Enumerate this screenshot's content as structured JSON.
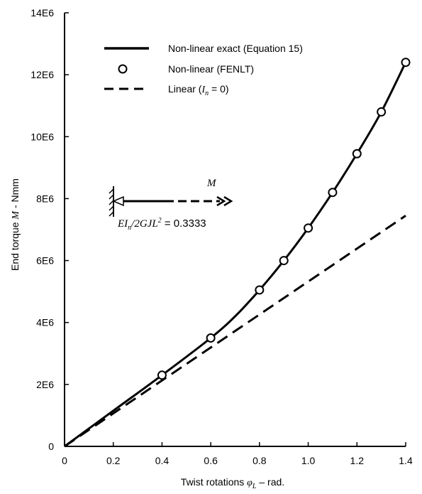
{
  "chart_data": {
    "type": "line",
    "title": "",
    "xlabel": "Twist rotations φL – rad.",
    "xlabel_parts": {
      "pre": "Twist rotations ",
      "sym": "φ",
      "sub": "L",
      "post": " – rad."
    },
    "ylabel": "End torque M - Nmm",
    "ylabel_parts": {
      "pre": "End torque ",
      "sym": "M",
      "post": " - Nmm"
    },
    "xlim": [
      0,
      1.4
    ],
    "ylim": [
      0,
      14000000
    ],
    "xticks": [
      0,
      0.2,
      0.4,
      0.6,
      0.8,
      1.0,
      1.2,
      1.4
    ],
    "xtick_labels": [
      "0",
      "0.2",
      "0.4",
      "0.6",
      "0.8",
      "1.0",
      "1.2",
      "1.4"
    ],
    "yticks": [
      0,
      2000000,
      4000000,
      6000000,
      8000000,
      10000000,
      12000000,
      14000000
    ],
    "ytick_labels": [
      "0",
      "2E6",
      "4E6",
      "6E6",
      "8E6",
      "10E6",
      "12E6",
      "14E6"
    ],
    "grid": false,
    "legend_position": "top-left",
    "series": [
      {
        "name": "Non-linear exact (Equation 15)",
        "style": "solid",
        "x": [
          0,
          0.2,
          0.4,
          0.6,
          0.7,
          0.8,
          0.9,
          1.0,
          1.1,
          1.2,
          1.3,
          1.4
        ],
        "y": [
          0,
          1150000,
          2300000,
          3500000,
          4200000,
          5050000,
          6000000,
          7050000,
          8200000,
          9450000,
          10800000,
          12400000
        ]
      },
      {
        "name": "Non-linear (FENLT)",
        "style": "markers",
        "x": [
          0.4,
          0.6,
          0.8,
          0.9,
          1.0,
          1.1,
          1.2,
          1.3,
          1.4
        ],
        "y": [
          2300000,
          3500000,
          5050000,
          6000000,
          7050000,
          8200000,
          9450000,
          10800000,
          12400000
        ]
      },
      {
        "name": "Linear (In = 0)",
        "name_parts": {
          "pre": "Linear (",
          "sym": "I",
          "sub": "n",
          "post": " = 0)"
        },
        "style": "dashed",
        "x": [
          0,
          1.4
        ],
        "y": [
          0,
          7450000
        ]
      }
    ],
    "annotations": {
      "moment_label": "M",
      "ratio_label": "EIn/2GJL2 = 0.3333",
      "ratio_parts": {
        "a": "EI",
        "a_sub": "n",
        "b": "/2GJL",
        "b_sup": "2",
        "c": " = 0.3333"
      }
    }
  }
}
